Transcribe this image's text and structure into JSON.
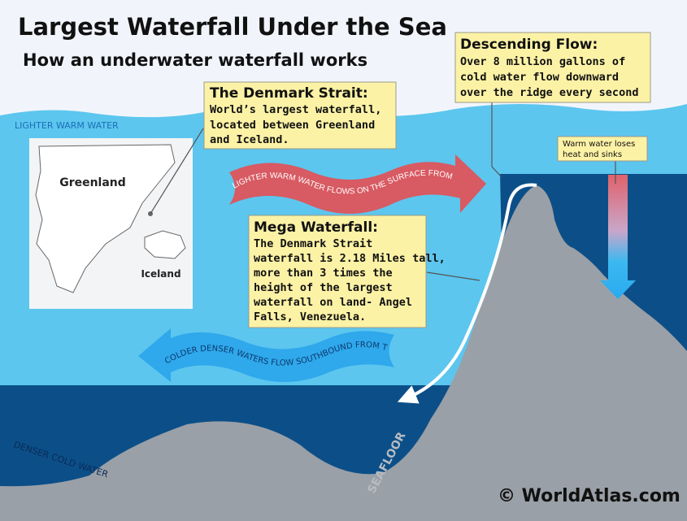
{
  "header": {
    "title": "Largest Waterfall Under the Sea",
    "subtitle": "How an underwater waterfall works"
  },
  "labels": {
    "surface": "LIGHTER WARM WATER",
    "deep": "DENSER COLD WATER",
    "seafloor": "SEAFLOOR",
    "credit": "© WorldAtlas.com"
  },
  "map": {
    "greenland": "Greenland",
    "iceland": "Iceland"
  },
  "arrows": {
    "warm": "LIGHTER WARM WATER FLOWS ON THE SURFACE FROM THE IRMINGER",
    "cold": "COLDER DENSER WATERS FLOW SOUTHBOUND FROM THE NORDIC SEA"
  },
  "callouts": [
    {
      "title": "The Denmark Strait:",
      "lines": [
        "World’s largest waterfall,",
        "located between Greenland",
        "and Iceland."
      ]
    },
    {
      "title": "Descending Flow:",
      "lines": [
        "Over 8 million gallons of",
        "cold water flow downward",
        "over the ridge every second"
      ]
    },
    {
      "title": "Mega Waterfall:",
      "lines": [
        "The Denmark Strait",
        "waterfall is 2.18 Miles tall,",
        "more than 3 times the",
        "height of the largest",
        "waterfall on land- Angel",
        "Falls, Venezuela."
      ]
    },
    {
      "lines": [
        "Warm water loses",
        "heat and sinks"
      ]
    }
  ]
}
